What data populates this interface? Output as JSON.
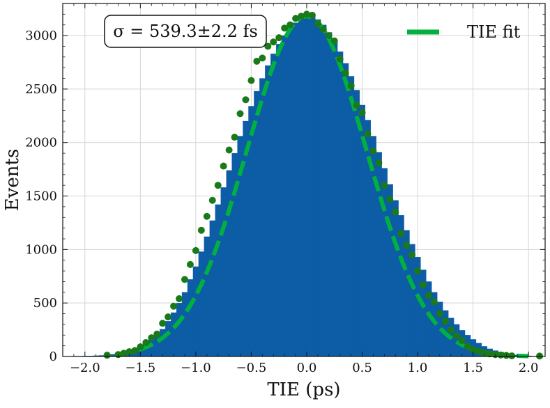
{
  "chart_data": {
    "type": "bar",
    "xlabel": "TIE (ps)",
    "ylabel": "Events",
    "xlim": [
      -2.2,
      2.15
    ],
    "ylim": [
      0,
      3300
    ],
    "grid": true,
    "x_ticks": [
      -2.0,
      -1.5,
      -1.0,
      -0.5,
      0.0,
      0.5,
      1.0,
      1.5,
      2.0
    ],
    "x_tick_labels": [
      "−2.0",
      "−1.5",
      "−1.0",
      "−0.5",
      "0.0",
      "0.5",
      "1.0",
      "1.5",
      "2.0"
    ],
    "y_ticks": [
      0,
      500,
      1000,
      1500,
      2000,
      2500,
      3000
    ],
    "y_tick_labels": [
      "0",
      "500",
      "1000",
      "1500",
      "2000",
      "2500",
      "3000"
    ],
    "annotation": "σ = 539.3±2.2 fs",
    "legend": {
      "placement": "top-right",
      "entries": [
        {
          "label": "TIE fit",
          "color": "#00b140",
          "style": "dashed-line"
        }
      ]
    },
    "histogram": {
      "color": "#0c5da5",
      "bin_width": 0.05,
      "bin_centers": [
        -2.2,
        -2.15,
        -2.1,
        -2.05,
        -2.0,
        -1.95,
        -1.9,
        -1.85,
        -1.8,
        -1.75,
        -1.7,
        -1.65,
        -1.6,
        -1.55,
        -1.5,
        -1.45,
        -1.4,
        -1.35,
        -1.3,
        -1.25,
        -1.2,
        -1.15,
        -1.1,
        -1.05,
        -1.0,
        -0.95,
        -0.9,
        -0.85,
        -0.8,
        -0.75,
        -0.7,
        -0.65,
        -0.6,
        -0.55,
        -0.5,
        -0.45,
        -0.4,
        -0.35,
        -0.3,
        -0.25,
        -0.2,
        -0.15,
        -0.1,
        -0.05,
        0.0,
        0.05,
        0.1,
        0.15,
        0.2,
        0.25,
        0.3,
        0.35,
        0.4,
        0.45,
        0.5,
        0.55,
        0.6,
        0.65,
        0.7,
        0.75,
        0.8,
        0.85,
        0.9,
        0.95,
        1.0,
        1.05,
        1.1,
        1.15,
        1.2,
        1.25,
        1.3,
        1.35,
        1.4,
        1.45,
        1.5,
        1.55,
        1.6,
        1.65,
        1.7,
        1.75,
        1.8,
        1.85,
        1.9,
        1.95,
        2.0,
        2.05,
        2.1
      ],
      "counts": [
        2,
        2,
        3,
        3,
        4,
        5,
        7,
        10,
        14,
        20,
        28,
        40,
        55,
        75,
        95,
        125,
        160,
        205,
        255,
        330,
        410,
        500,
        600,
        720,
        840,
        980,
        1120,
        1270,
        1420,
        1580,
        1740,
        1900,
        2060,
        2200,
        2340,
        2480,
        2600,
        2720,
        2830,
        2920,
        3000,
        3070,
        3120,
        3160,
        3190,
        3180,
        3150,
        3100,
        3030,
        2950,
        2850,
        2740,
        2620,
        2490,
        2350,
        2210,
        2060,
        1910,
        1760,
        1610,
        1460,
        1320,
        1180,
        1050,
        930,
        810,
        700,
        600,
        510,
        430,
        360,
        300,
        245,
        200,
        160,
        125,
        95,
        72,
        55,
        40,
        28,
        20,
        14,
        9,
        6,
        3,
        5
      ]
    },
    "points": {
      "color": "#1a7a1a",
      "x": [
        -1.8,
        -1.7,
        -1.65,
        -1.6,
        -1.55,
        -1.5,
        -1.45,
        -1.4,
        -1.35,
        -1.3,
        -1.25,
        -1.2,
        -1.15,
        -1.1,
        -1.05,
        -1.0,
        -0.95,
        -0.9,
        -0.85,
        -0.8,
        -0.75,
        -0.7,
        -0.65,
        -0.6,
        -0.55,
        -0.5,
        -0.45,
        -0.4,
        -0.35,
        -0.3,
        -0.25,
        -0.2,
        -0.15,
        -0.1,
        -0.05,
        0.0,
        0.05,
        0.1,
        0.15,
        0.2,
        0.25,
        0.3,
        0.35,
        0.4,
        0.45,
        0.5,
        0.55,
        0.6,
        0.65,
        0.7,
        0.75,
        0.8,
        0.85,
        0.9,
        0.95,
        1.0,
        1.05,
        1.1,
        1.15,
        1.2,
        1.25,
        1.3,
        1.35,
        1.4,
        1.45,
        1.5,
        1.55,
        1.6,
        1.65,
        1.7,
        1.75,
        1.8,
        1.85,
        2.1
      ],
      "y": [
        12,
        18,
        30,
        45,
        55,
        90,
        130,
        175,
        210,
        310,
        370,
        470,
        540,
        720,
        860,
        990,
        1180,
        1310,
        1460,
        1600,
        1780,
        1930,
        2050,
        2270,
        2400,
        2580,
        2760,
        2790,
        2900,
        2940,
        2980,
        3070,
        3100,
        3160,
        3180,
        3200,
        3190,
        3110,
        3060,
        3000,
        2950,
        2780,
        2650,
        2530,
        2350,
        2280,
        2080,
        1920,
        1810,
        1600,
        1470,
        1350,
        1150,
        1040,
        950,
        800,
        670,
        570,
        510,
        400,
        330,
        250,
        195,
        150,
        95,
        65,
        50,
        35,
        25,
        18,
        14,
        10,
        6,
        4
      ]
    },
    "fit": {
      "name": "TIE fit",
      "color": "#00b140",
      "x_range": [
        -1.7,
        2.0
      ],
      "mean": 0.0,
      "sigma": 0.5393,
      "amplitude": 3180
    }
  }
}
